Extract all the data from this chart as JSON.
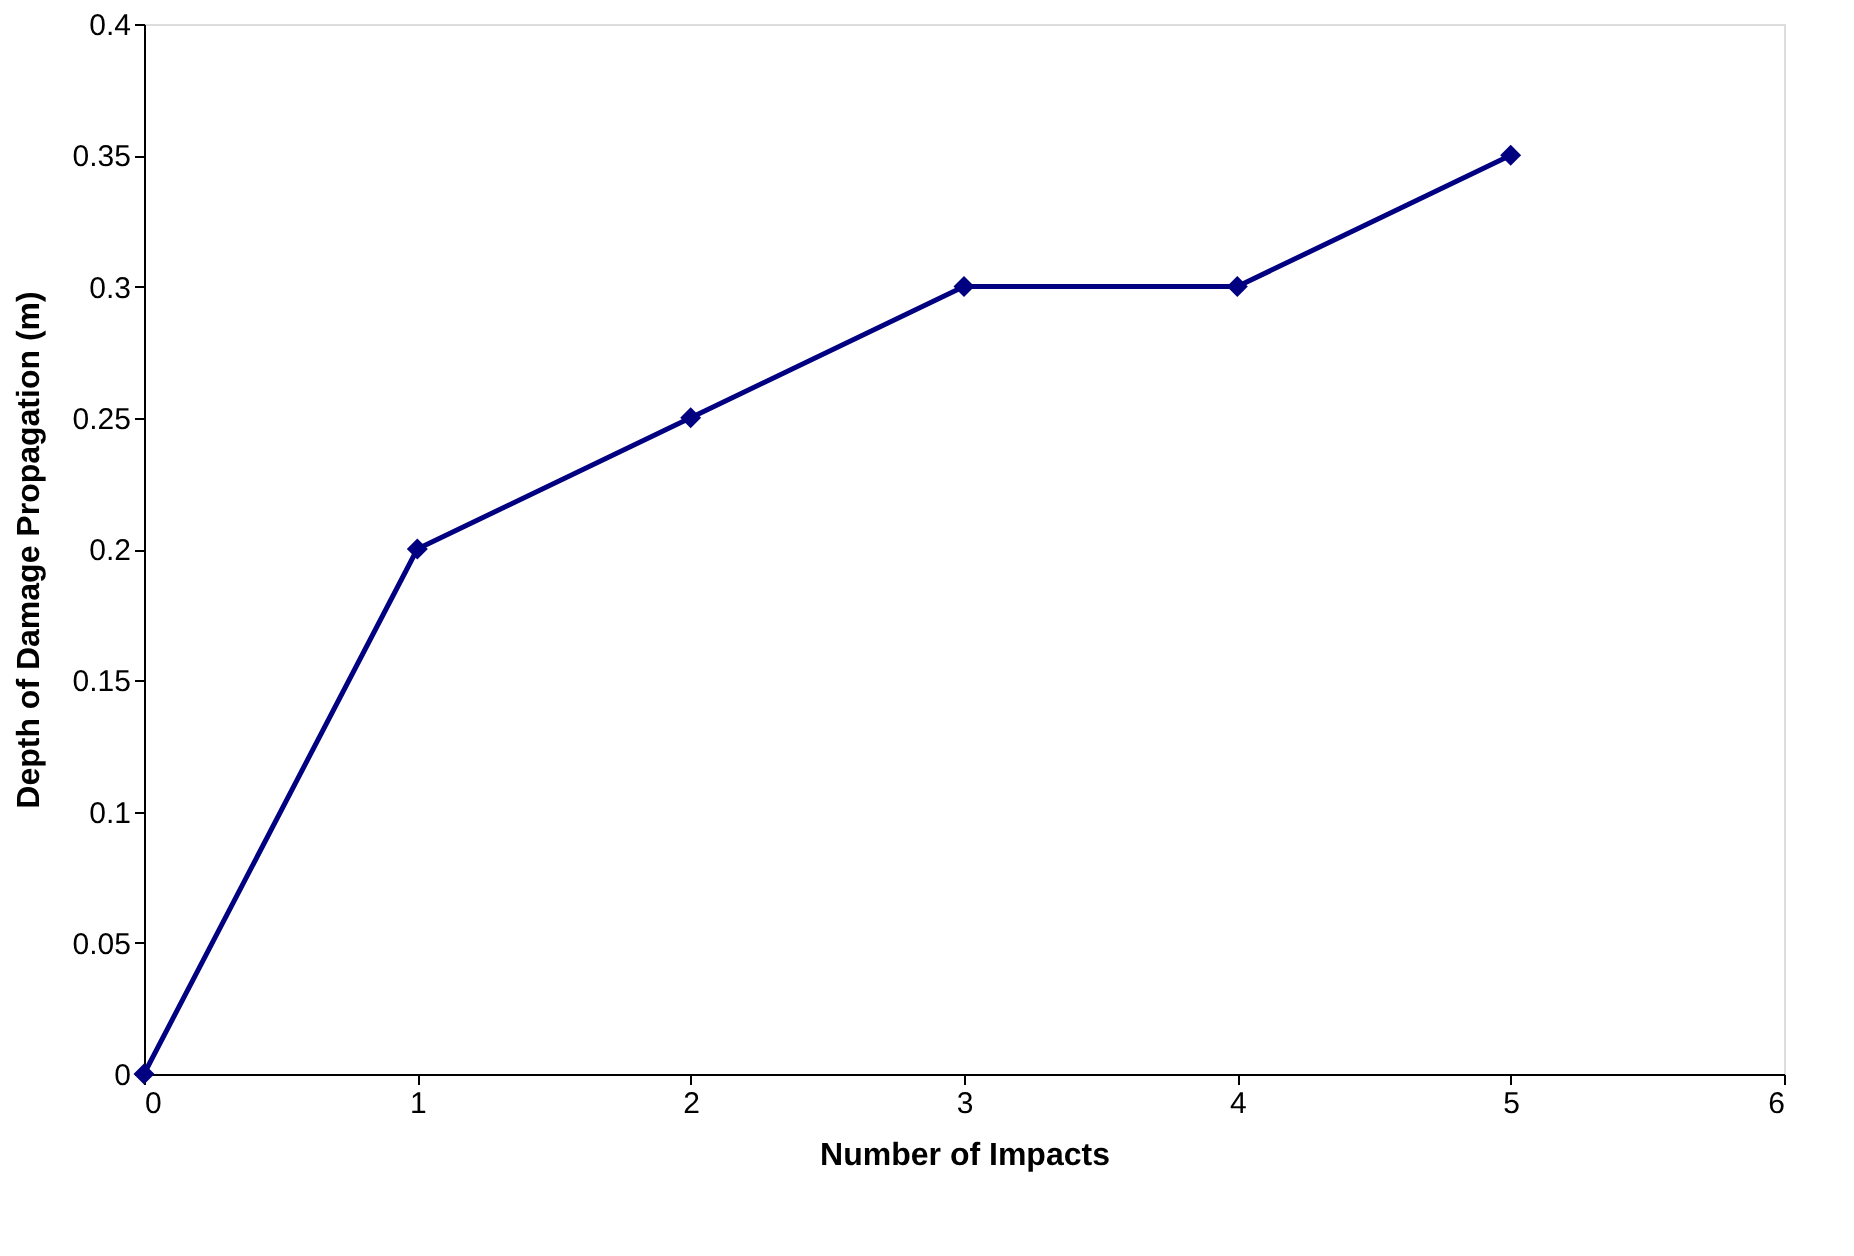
{
  "chart_data": {
    "type": "line",
    "xlabel": "Number of Impacts",
    "ylabel": "Depth of Damage Propagation (m)",
    "x": [
      0,
      1,
      2,
      3,
      4,
      5
    ],
    "series": [
      {
        "color": "#000080",
        "values": [
          0,
          0.2,
          0.25,
          0.3,
          0.3,
          0.35
        ]
      }
    ],
    "xlim": [
      0,
      6
    ],
    "xticks": [
      0,
      1,
      2,
      3,
      4,
      5,
      6
    ],
    "ylim": [
      0,
      0.4
    ],
    "yticks": [
      0,
      0.05,
      0.1,
      0.15,
      0.2,
      0.25,
      0.3,
      0.35,
      0.4
    ],
    "grid": false,
    "marker": "diamond",
    "line_style": "solid"
  }
}
